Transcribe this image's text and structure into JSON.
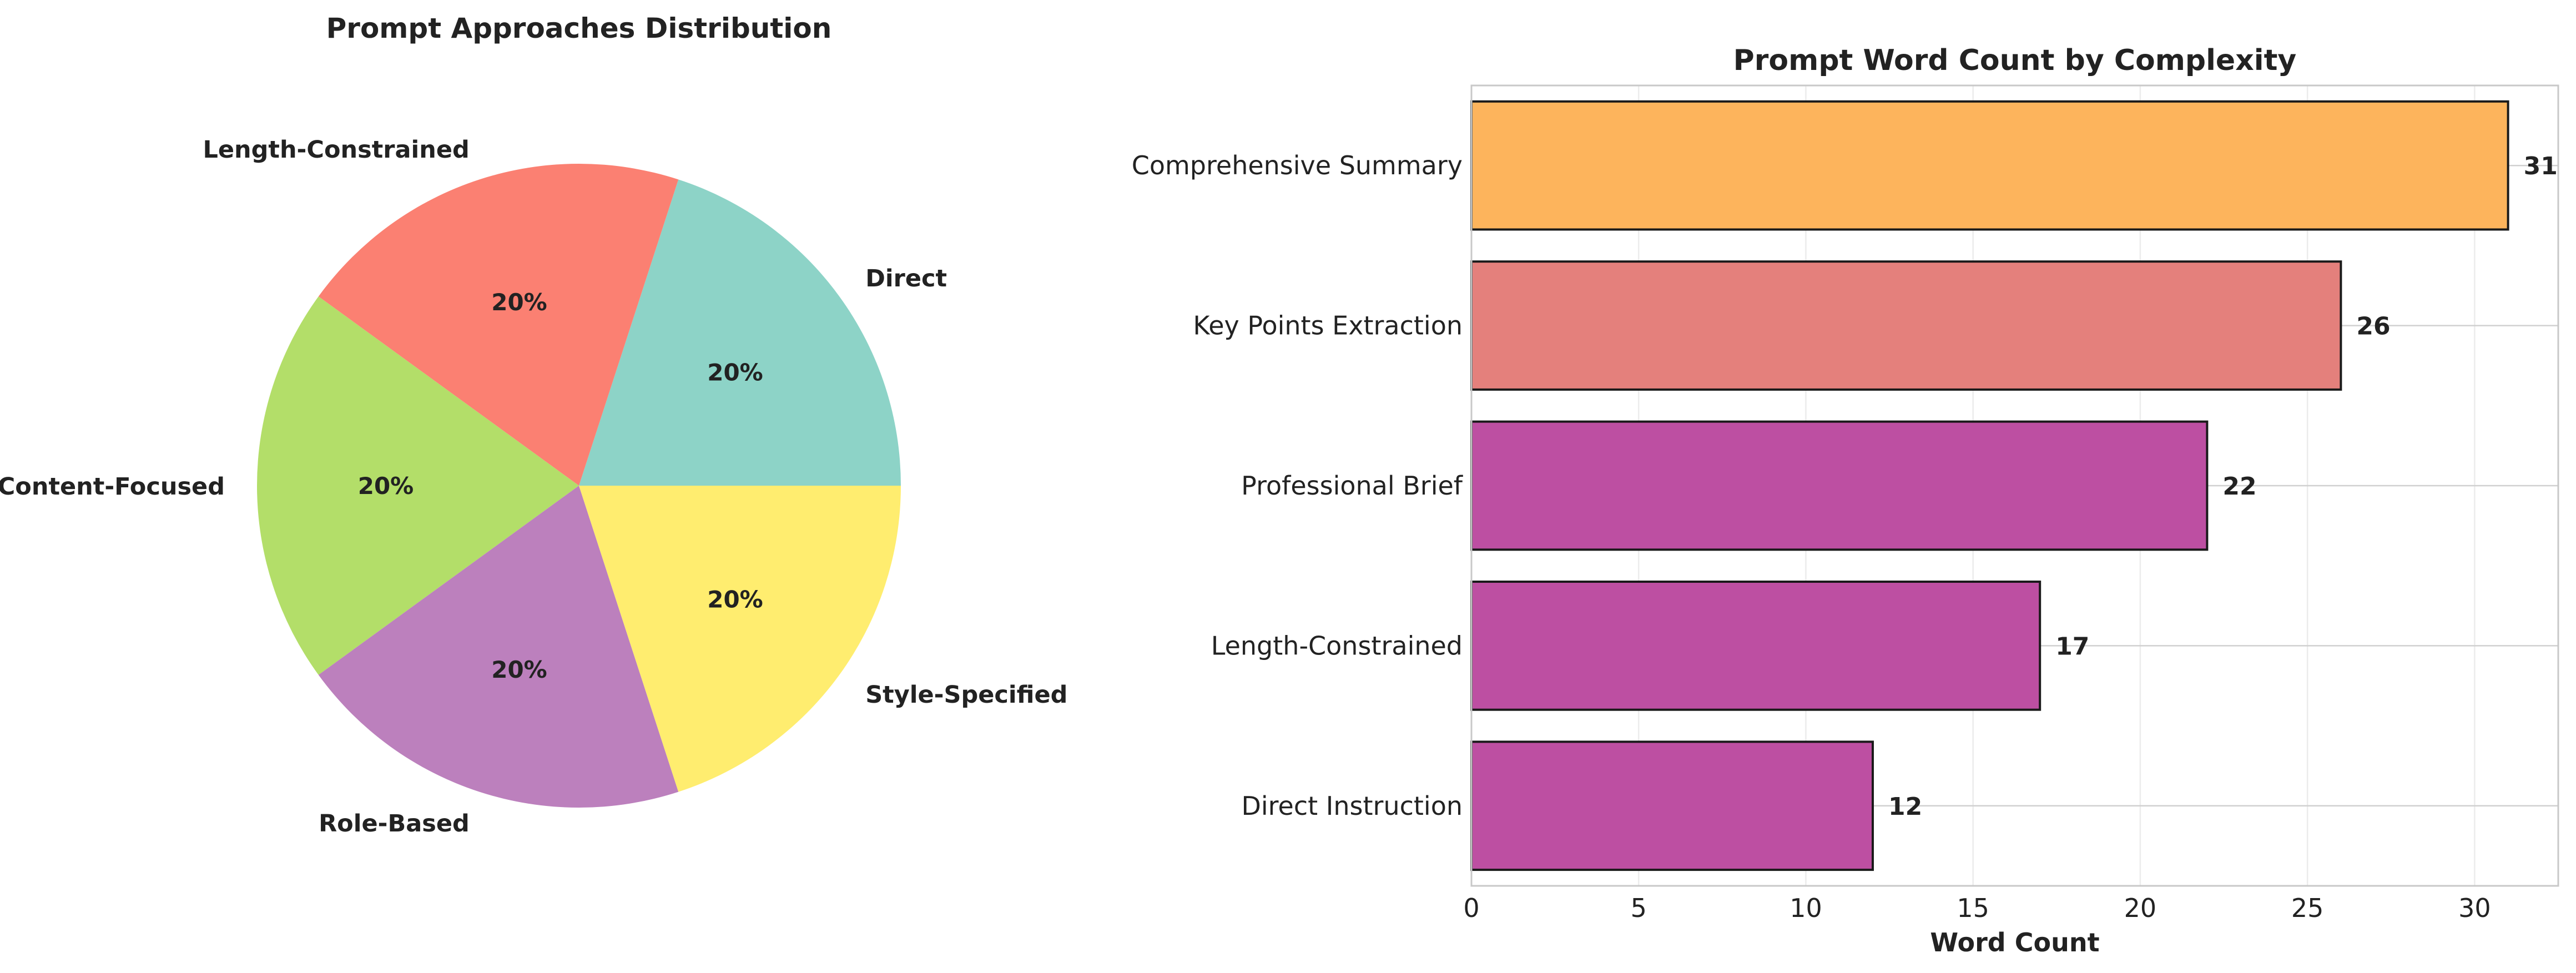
{
  "chart_data": [
    {
      "type": "pie",
      "title": "Prompt Approaches Distribution",
      "slices": [
        {
          "label": "Direct",
          "value": 20,
          "pct_label": "20%",
          "color": "#8dd3c7"
        },
        {
          "label": "Length-Constrained",
          "value": 20,
          "pct_label": "20%",
          "color": "#fb8072"
        },
        {
          "label": "Content-Focused",
          "value": 20,
          "pct_label": "20%",
          "color": "#b3de69"
        },
        {
          "label": "Role-Based",
          "value": 20,
          "pct_label": "20%",
          "color": "#bc80bd"
        },
        {
          "label": "Style-Specified",
          "value": 20,
          "pct_label": "20%",
          "color": "#ffed6f"
        }
      ]
    },
    {
      "type": "bar",
      "orientation": "horizontal",
      "title": "Prompt Word Count by Complexity",
      "xlabel": "Word Count",
      "ylabel": "",
      "xlim": [
        0,
        32.5
      ],
      "xticks": [
        0,
        5,
        10,
        15,
        20,
        25,
        30
      ],
      "grid": true,
      "categories": [
        "Comprehensive Summary",
        "Key Points Extraction",
        "Professional Brief",
        "Length-Constrained",
        "Direct Instruction"
      ],
      "values": [
        31,
        26,
        22,
        17,
        12
      ],
      "value_labels": [
        "31",
        "26",
        "22",
        "17",
        "12"
      ],
      "colors": [
        "#fdb45c",
        "#e4807c",
        "#bd4fa2",
        "#bd4fa2",
        "#bd4fa2"
      ]
    }
  ]
}
